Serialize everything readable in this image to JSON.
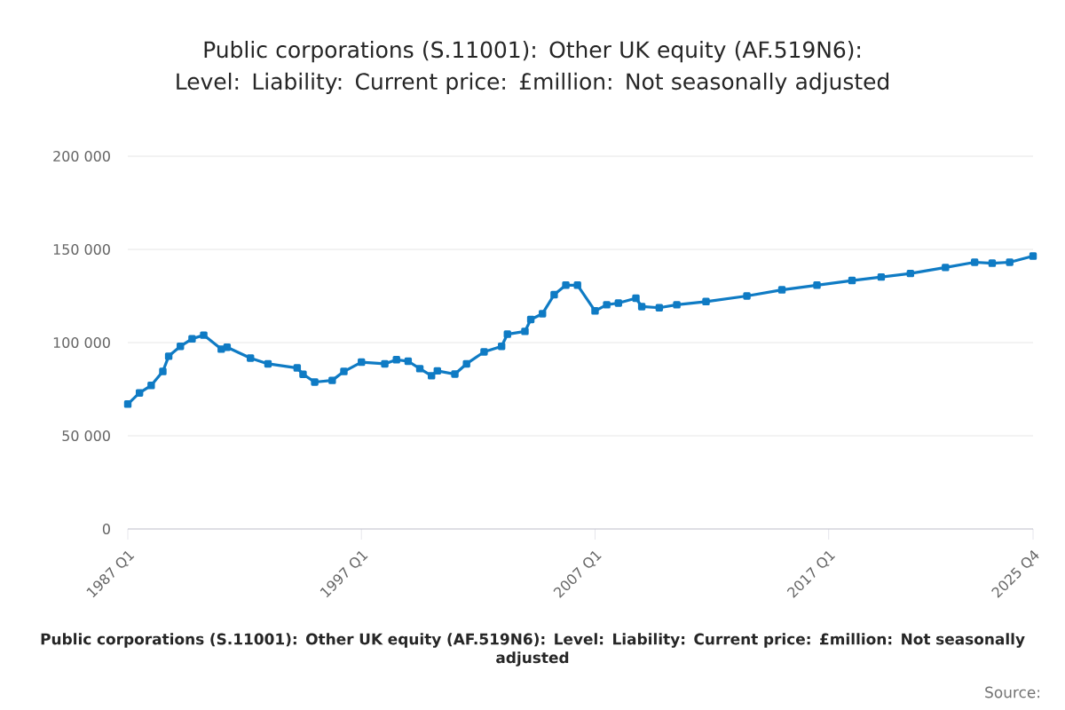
{
  "chart_data": {
    "type": "line",
    "title": "Public corporations (S.11001): Other UK equity (AF.519N6): Level: Liability: Current price: £million: Not seasonally adjusted",
    "annotations": [
      "Public corporations (S.11001): Other UK equity (AF.519N6): Level: Liability: Current price: £million: Not seasonally adjusted",
      "Source:"
    ],
    "series": [
      {
        "color": "#0f7bc4",
        "x": [
          "1987-01",
          "1987-07",
          "1988-01",
          "1988-07",
          "1988-10",
          "1989-04",
          "1989-10",
          "1990-04",
          "1991-01",
          "1991-04",
          "1992-04",
          "1993-01",
          "1994-04",
          "1994-07",
          "1995-01",
          "1995-10",
          "1996-04",
          "1997-01",
          "1998-01",
          "1998-07",
          "1999-01",
          "1999-07",
          "2000-01",
          "2000-04",
          "2001-01",
          "2001-07",
          "2002-04",
          "2003-01",
          "2003-04",
          "2004-01",
          "2004-04",
          "2004-10",
          "2005-04",
          "2005-10",
          "2006-04",
          "2007-01",
          "2007-07",
          "2008-01",
          "2008-10",
          "2009-01",
          "2009-10",
          "2010-07",
          "2011-10",
          "2013-07",
          "2015-01",
          "2016-07",
          "2018-01",
          "2019-04",
          "2020-07",
          "2022-01",
          "2023-04",
          "2024-01",
          "2024-10",
          "2025-10"
        ],
        "values": [
          67000,
          73000,
          77000,
          84500,
          92700,
          98000,
          102000,
          104000,
          96500,
          97500,
          91700,
          88600,
          86400,
          83000,
          78800,
          79700,
          84500,
          89500,
          88600,
          90800,
          90000,
          86000,
          82200,
          84800,
          83100,
          88600,
          95000,
          98000,
          104500,
          106000,
          112400,
          115500,
          125700,
          130800,
          130800,
          117000,
          120300,
          121200,
          123800,
          119300,
          118700,
          120300,
          122000,
          125000,
          128300,
          130800,
          133300,
          135200,
          137100,
          140300,
          143100,
          142600,
          143100,
          146400
        ]
      }
    ],
    "xlim": [
      "1987-01",
      "2025-10"
    ],
    "xticks": [
      {
        "value": "1987-01",
        "label": "1987 Q1"
      },
      {
        "value": "1997-01",
        "label": "1997 Q1"
      },
      {
        "value": "2007-01",
        "label": "2007 Q1"
      },
      {
        "value": "2017-01",
        "label": "2017 Q1"
      },
      {
        "value": "2025-10",
        "label": "2025 Q4"
      }
    ],
    "ylim": [
      0,
      200000
    ],
    "yticks": [
      {
        "value": 0,
        "label": "0"
      },
      {
        "value": 50000,
        "label": "50 000"
      },
      {
        "value": 100000,
        "label": "100 000"
      },
      {
        "value": 150000,
        "label": "150 000"
      },
      {
        "value": 200000,
        "label": "200 000"
      }
    ],
    "grid": "y",
    "marker": "square",
    "line_style": "solid"
  }
}
